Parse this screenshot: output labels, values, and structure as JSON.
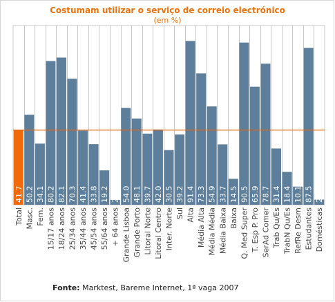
{
  "title": "Costumam utilizar o serviço de correio electrónico",
  "subtitle": "(em %)",
  "source_label": "Fonte:",
  "source_text": "Marktest, Bareme Internet, 1ª vaga 2007",
  "colors": {
    "bar": "#5d7f9c",
    "highlight": "#f06a0c",
    "reference_line": "#e8640a",
    "title": "#e8730f",
    "grid": "#c8c8c8",
    "axis_text": "#444444"
  },
  "chart_data": {
    "type": "bar",
    "title": "Costumam utilizar o serviço de correio electrónico",
    "subtitle": "(em %)",
    "categories": [
      "Total",
      "Masc.",
      "Fem.",
      "15/17 anos",
      "18/24 anos",
      "25/34 anos",
      "35/44 anos",
      "45/54 anos",
      "55/64 anos",
      "+ 64 anos",
      "Grande Lisboa",
      "Grande Porto",
      "Litoral Norte",
      "Litoral Centro",
      "Inter. Norte",
      "Sul",
      "Alta",
      "Média Alta",
      "Média Média",
      "Média Baixa",
      "Baixa",
      "Q. Med Super",
      "T. Esp P. Pro",
      "SerAd Comer",
      "Trab Qu/Es",
      "TrabN Qu/Es",
      "RefRe Desm",
      "Estudantes",
      "Domésticas"
    ],
    "values": [
      41.7,
      50.2,
      34.1,
      80.2,
      82.1,
      70.3,
      41.4,
      33.8,
      19.2,
      2.7,
      54.0,
      48.1,
      39.7,
      42.0,
      30.5,
      39.2,
      91.4,
      73.3,
      54.9,
      33.7,
      14.5,
      90.5,
      65.9,
      78.7,
      31.4,
      18.4,
      10.1,
      87.5,
      2.9
    ],
    "value_labels": [
      "41.7",
      "50.2",
      "34.1",
      "80.2",
      "82.1",
      "70.3",
      "41.4",
      "33.8",
      "19.2",
      "2.7",
      "54.0",
      "48.1",
      "39.7",
      "42.0",
      "30.5",
      "39.2",
      "91.4",
      "73.3",
      "54.9",
      "33.7",
      "14.5",
      "90.5",
      "65.9",
      "78.7",
      "31.4",
      "18.4",
      "10.1",
      "87.5",
      "2.9"
    ],
    "highlight_category": "Total",
    "reference_line_value": 41.7,
    "ylim": [
      0,
      100
    ],
    "grid": true,
    "legend": "none"
  }
}
